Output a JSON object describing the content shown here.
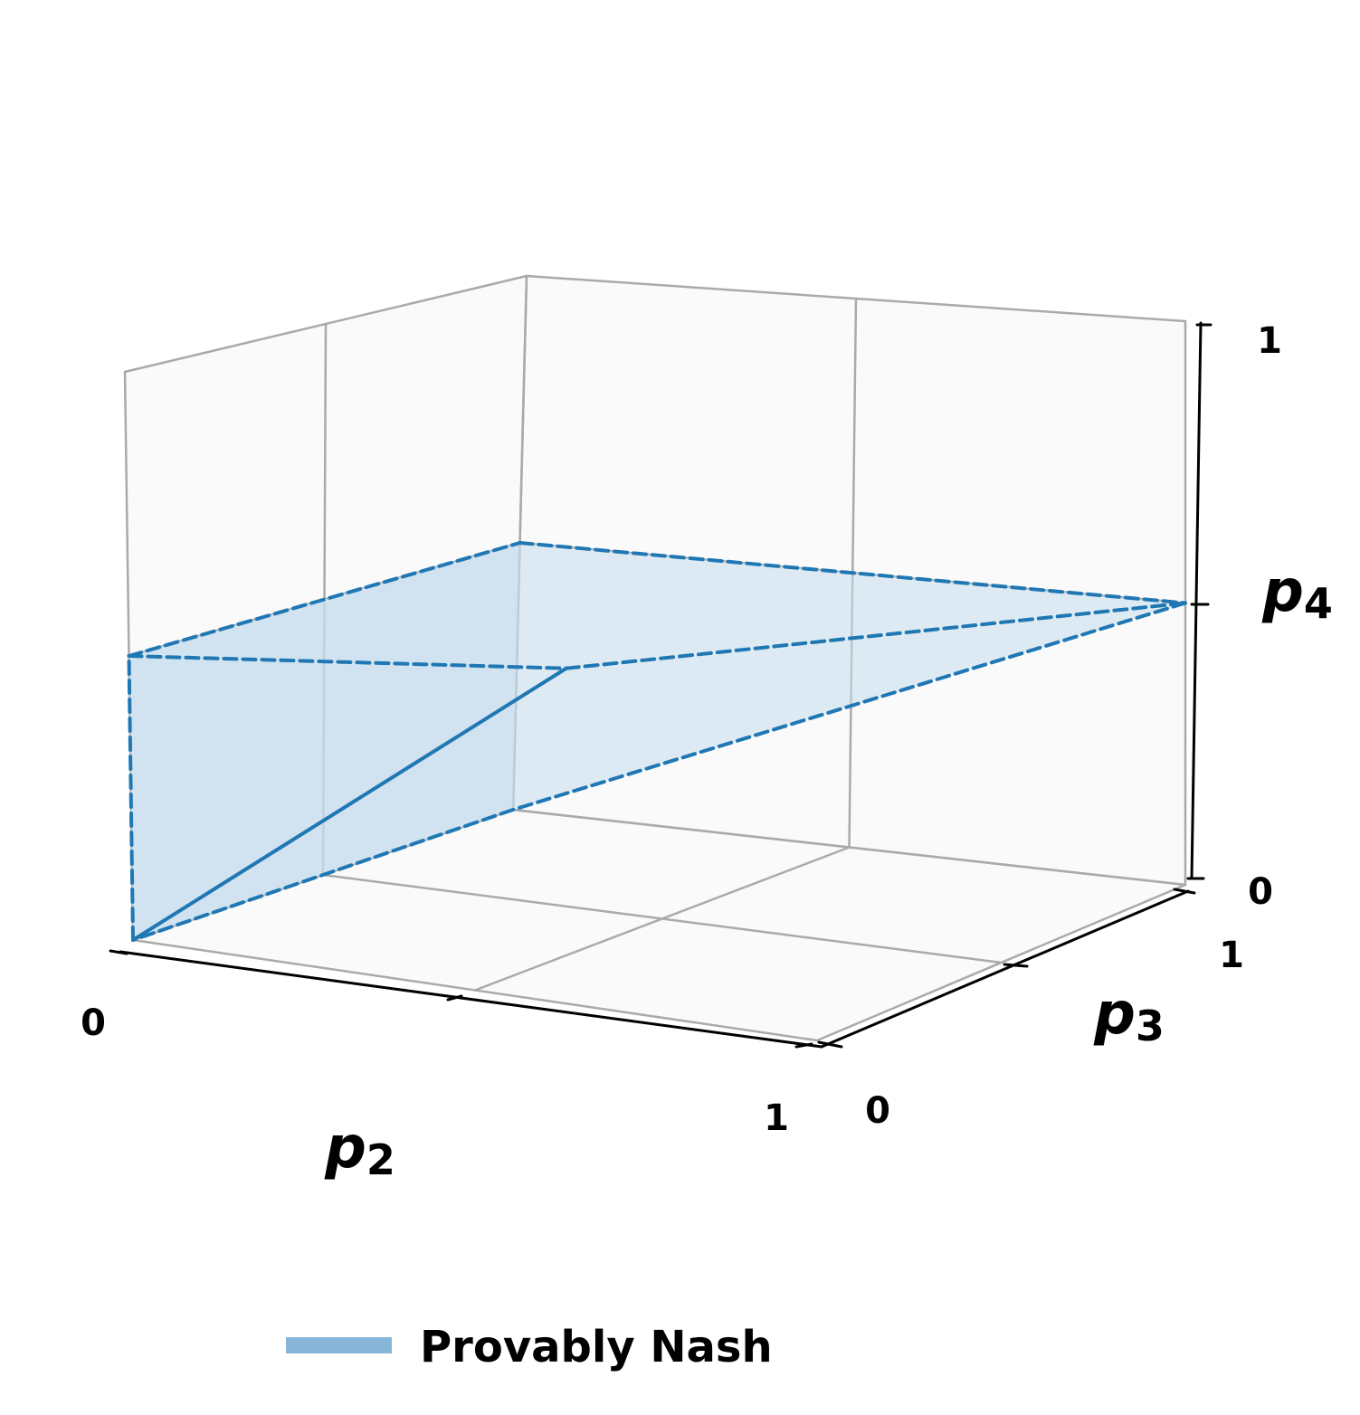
{
  "chart_data": {
    "type": "3d-surface",
    "axes": {
      "x": {
        "label_var": "p",
        "label_sub": "2",
        "range": [
          0,
          1
        ],
        "tick_labels": [
          "0",
          "1"
        ]
      },
      "y": {
        "label_var": "p",
        "label_sub": "3",
        "range": [
          0,
          1
        ],
        "tick_labels": [
          "0",
          "1"
        ]
      },
      "z": {
        "label_var": "p",
        "label_sub": "4",
        "range": [
          0,
          1
        ],
        "tick_labels": [
          "0",
          "1"
        ]
      }
    },
    "grid": true,
    "series": [
      {
        "name": "Provably Nash",
        "color": "#1f77b4",
        "fill_color": "#c6dcec",
        "legend_color": "#88b6d8",
        "faces": [
          [
            [
              0,
              0,
              0
            ],
            [
              0,
              0,
              0.5
            ],
            [
              0,
              1,
              0.5
            ],
            [
              0,
              1,
              0
            ]
          ],
          [
            [
              0,
              0,
              0
            ],
            [
              0,
              0,
              0.5
            ],
            [
              0.5,
              0,
              0.5
            ]
          ],
          [
            [
              0,
              0,
              0
            ],
            [
              0.5,
              0,
              0.5
            ],
            [
              1,
              1,
              0.5
            ],
            [
              0,
              1,
              0
            ]
          ],
          [
            [
              0,
              0,
              0.5
            ],
            [
              0.5,
              0,
              0.5
            ],
            [
              1,
              1,
              0.5
            ],
            [
              0,
              1,
              0.5
            ]
          ]
        ],
        "solid_edge": [
          [
            0,
            0,
            0
          ],
          [
            0.5,
            0,
            0.5
          ]
        ],
        "dashed_edges": [
          [
            [
              0,
              0,
              0
            ],
            [
              0,
              0,
              0.5
            ]
          ],
          [
            [
              0,
              0,
              0.5
            ],
            [
              0.5,
              0,
              0.5
            ]
          ],
          [
            [
              0.5,
              0,
              0.5
            ],
            [
              1,
              1,
              0.5
            ]
          ],
          [
            [
              0,
              0,
              0.5
            ],
            [
              0,
              1,
              0.5
            ]
          ],
          [
            [
              0,
              1,
              0.5
            ],
            [
              1,
              1,
              0.5
            ]
          ],
          [
            [
              1,
              1,
              0.5
            ],
            [
              0,
              1,
              0
            ]
          ],
          [
            [
              0,
              1,
              0
            ],
            [
              0,
              0,
              0
            ]
          ]
        ]
      }
    ],
    "legend": {
      "position": "bottom-center",
      "entries": [
        "Provably Nash"
      ]
    }
  }
}
